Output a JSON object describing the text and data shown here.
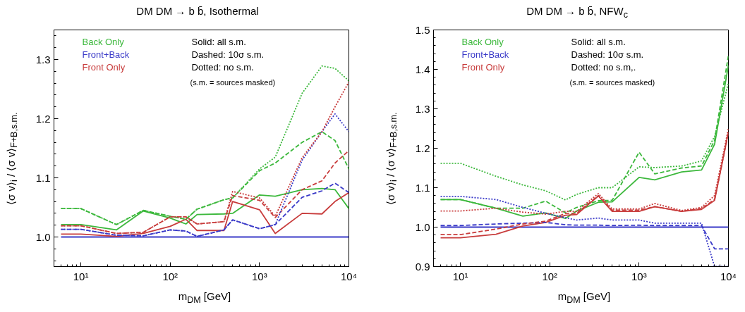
{
  "chart_data": [
    {
      "type": "line",
      "title": "DM DM → b b̄, Isothermal",
      "xlabel": "m$_{DM}$ [GeV]",
      "ylabel": "⟨σ v⟩$_{i}$ / ⟨σ v⟩$_{F+B,s.m.}$",
      "log": "x",
      "xlim": [
        5,
        10000
      ],
      "ylim": [
        0.95,
        1.35
      ],
      "xticks": [
        {
          "value": 10,
          "label": "10¹"
        },
        {
          "value": 100,
          "label": "10²"
        },
        {
          "value": 1000,
          "label": "10³"
        },
        {
          "value": 10000,
          "label": "10⁴"
        }
      ],
      "yticks": [
        {
          "value": 1.0,
          "label": "1.0"
        },
        {
          "value": 1.1,
          "label": "1.1"
        },
        {
          "value": 1.2,
          "label": "1.2"
        },
        {
          "value": 1.3,
          "label": "1.3"
        }
      ],
      "grid": false,
      "legend": "top left",
      "annotations": [
        "Solid: all s.m.",
        "Dashed: 10σ s.m.",
        "Dotted: no s.m.",
        "(s.m. = sources masked)"
      ],
      "x": [
        6,
        10,
        25,
        50,
        100,
        150,
        200,
        400,
        500,
        1000,
        1500,
        3000,
        5000,
        7000,
        10000
      ],
      "series": [
        {
          "name": "Back Only",
          "color": "#3cb83c",
          "line_style": "solid",
          "values": [
            1.021,
            1.021,
            1.012,
            1.044,
            1.032,
            1.022,
            1.038,
            1.039,
            1.04,
            1.071,
            1.069,
            1.08,
            1.082,
            1.08,
            1.048
          ]
        },
        {
          "name": "Front+Back",
          "color": "#3a3ac8",
          "line_style": "solid",
          "values": [
            1.0,
            1.0,
            1.0,
            1.0,
            1.0,
            1.0,
            1.0,
            1.0,
            1.0,
            1.0,
            1.0,
            1.0,
            1.0,
            1.0,
            1.0
          ]
        },
        {
          "name": "Front Only",
          "color": "#c83c3c",
          "line_style": "solid",
          "values": [
            1.005,
            1.005,
            1.001,
            1.006,
            1.018,
            1.03,
            1.011,
            1.011,
            1.06,
            1.046,
            1.006,
            1.04,
            1.039,
            1.06,
            1.075
          ]
        },
        {
          "color": "#3cb83c",
          "line_style": "dashed",
          "values": [
            1.048,
            1.048,
            1.021,
            1.045,
            1.035,
            1.03,
            1.047,
            1.063,
            1.066,
            1.112,
            1.125,
            1.16,
            1.178,
            1.163,
            1.115
          ]
        },
        {
          "color": "#3a3ac8",
          "line_style": "dashed",
          "values": [
            1.013,
            1.013,
            1.003,
            1.002,
            1.012,
            1.01,
            1.001,
            1.012,
            1.029,
            1.014,
            1.021,
            1.067,
            1.078,
            1.091,
            1.075
          ]
        },
        {
          "color": "#c83c3c",
          "line_style": "dashed",
          "values": [
            1.019,
            1.019,
            1.006,
            1.008,
            1.034,
            1.034,
            1.022,
            1.026,
            1.07,
            1.062,
            1.033,
            1.08,
            1.095,
            1.125,
            1.146
          ]
        },
        {
          "color": "#3cb83c",
          "line_style": "dotted",
          "values": [
            1.048,
            1.048,
            1.021,
            1.045,
            1.035,
            1.03,
            1.047,
            1.063,
            1.066,
            1.115,
            1.135,
            1.243,
            1.289,
            1.285,
            1.264
          ]
        },
        {
          "color": "#3a3ac8",
          "line_style": "dotted",
          "values": [
            1.013,
            1.013,
            1.003,
            1.002,
            1.012,
            1.01,
            1.001,
            1.012,
            1.029,
            1.014,
            1.021,
            1.13,
            1.178,
            1.208,
            1.178
          ]
        },
        {
          "color": "#c83c3c",
          "line_style": "dotted",
          "values": [
            1.019,
            1.019,
            1.006,
            1.008,
            1.034,
            1.034,
            1.022,
            1.026,
            1.077,
            1.066,
            1.035,
            1.134,
            1.178,
            1.22,
            1.262
          ]
        }
      ]
    },
    {
      "type": "line",
      "title": "DM DM → b b̄,  NFW$_{c}$",
      "xlabel": "m$_{DM}$ [GeV]",
      "ylabel": "⟨σ v⟩$_{i}$ / ⟨σ v⟩$_{F+B,s.m.}$",
      "log": "x",
      "xlim": [
        5,
        10000
      ],
      "ylim": [
        0.9,
        1.5
      ],
      "xticks": [
        {
          "value": 10,
          "label": "10¹"
        },
        {
          "value": 100,
          "label": "10²"
        },
        {
          "value": 1000,
          "label": "10³"
        },
        {
          "value": 10000,
          "label": "10⁴"
        }
      ],
      "yticks": [
        {
          "value": 0.9,
          "label": "0.9"
        },
        {
          "value": 1.0,
          "label": "1.0"
        },
        {
          "value": 1.1,
          "label": "1.1"
        },
        {
          "value": 1.2,
          "label": "1.2"
        },
        {
          "value": 1.3,
          "label": "1.3"
        },
        {
          "value": 1.4,
          "label": "1.4"
        },
        {
          "value": 1.5,
          "label": "1.5"
        }
      ],
      "grid": false,
      "legend": "top left",
      "annotations": [
        "Solid: all s.m.",
        "Dashed: 10σ s.m.",
        "Dotted: no s.m,.",
        "(s.m. = sources masked)"
      ],
      "x": [
        6,
        10,
        25,
        50,
        90,
        150,
        200,
        350,
        500,
        1000,
        1500,
        3000,
        5000,
        7000,
        10000
      ],
      "series": [
        {
          "name": "Back Only",
          "color": "#3cb83c",
          "line_style": "solid",
          "values": [
            1.07,
            1.07,
            1.048,
            1.028,
            1.036,
            1.022,
            1.041,
            1.063,
            1.064,
            1.126,
            1.12,
            1.14,
            1.145,
            1.21,
            1.41
          ]
        },
        {
          "name": "Front+Back",
          "color": "#3a3ac8",
          "line_style": "solid",
          "values": [
            1.0,
            1.0,
            1.0,
            1.0,
            1.0,
            1.0,
            1.0,
            1.0,
            1.0,
            1.0,
            1.0,
            1.0,
            1.0,
            1.0,
            1.0
          ]
        },
        {
          "name": "Front Only",
          "color": "#c83c3c",
          "line_style": "solid",
          "values": [
            0.973,
            0.973,
            0.982,
            1.003,
            1.012,
            1.03,
            1.032,
            1.079,
            1.04,
            1.04,
            1.052,
            1.04,
            1.045,
            1.068,
            1.241
          ]
        },
        {
          "color": "#3cb83c",
          "line_style": "dashed",
          "values": [
            1.07,
            1.07,
            1.048,
            1.048,
            1.066,
            1.036,
            1.05,
            1.067,
            1.068,
            1.19,
            1.135,
            1.15,
            1.155,
            1.22,
            1.435
          ]
        },
        {
          "color": "#3a3ac8",
          "line_style": "dashed",
          "values": [
            1.004,
            1.004,
            1.008,
            1.01,
            1.012,
            1.006,
            1.005,
            1.005,
            1.004,
            1.005,
            1.004,
            1.004,
            1.004,
            0.945,
            0.945
          ]
        },
        {
          "color": "#c83c3c",
          "line_style": "dashed",
          "values": [
            0.981,
            0.981,
            0.995,
            1.008,
            1.015,
            1.035,
            1.035,
            1.08,
            1.043,
            1.043,
            1.052,
            1.04,
            1.047,
            1.07,
            1.24
          ]
        },
        {
          "color": "#3cb83c",
          "line_style": "dotted",
          "values": [
            1.162,
            1.162,
            1.129,
            1.107,
            1.092,
            1.069,
            1.083,
            1.1,
            1.1,
            1.153,
            1.151,
            1.155,
            1.168,
            1.23,
            1.365
          ]
        },
        {
          "color": "#3a3ac8",
          "line_style": "dotted",
          "values": [
            1.078,
            1.078,
            1.07,
            1.05,
            1.035,
            1.024,
            1.018,
            1.023,
            1.018,
            1.018,
            1.01,
            1.01,
            1.01,
            0.9,
            0.9
          ]
        },
        {
          "color": "#c83c3c",
          "line_style": "dotted",
          "values": [
            1.041,
            1.041,
            1.048,
            1.038,
            1.033,
            1.04,
            1.04,
            1.085,
            1.046,
            1.046,
            1.06,
            1.042,
            1.05,
            1.08,
            1.25
          ]
        }
      ]
    }
  ]
}
